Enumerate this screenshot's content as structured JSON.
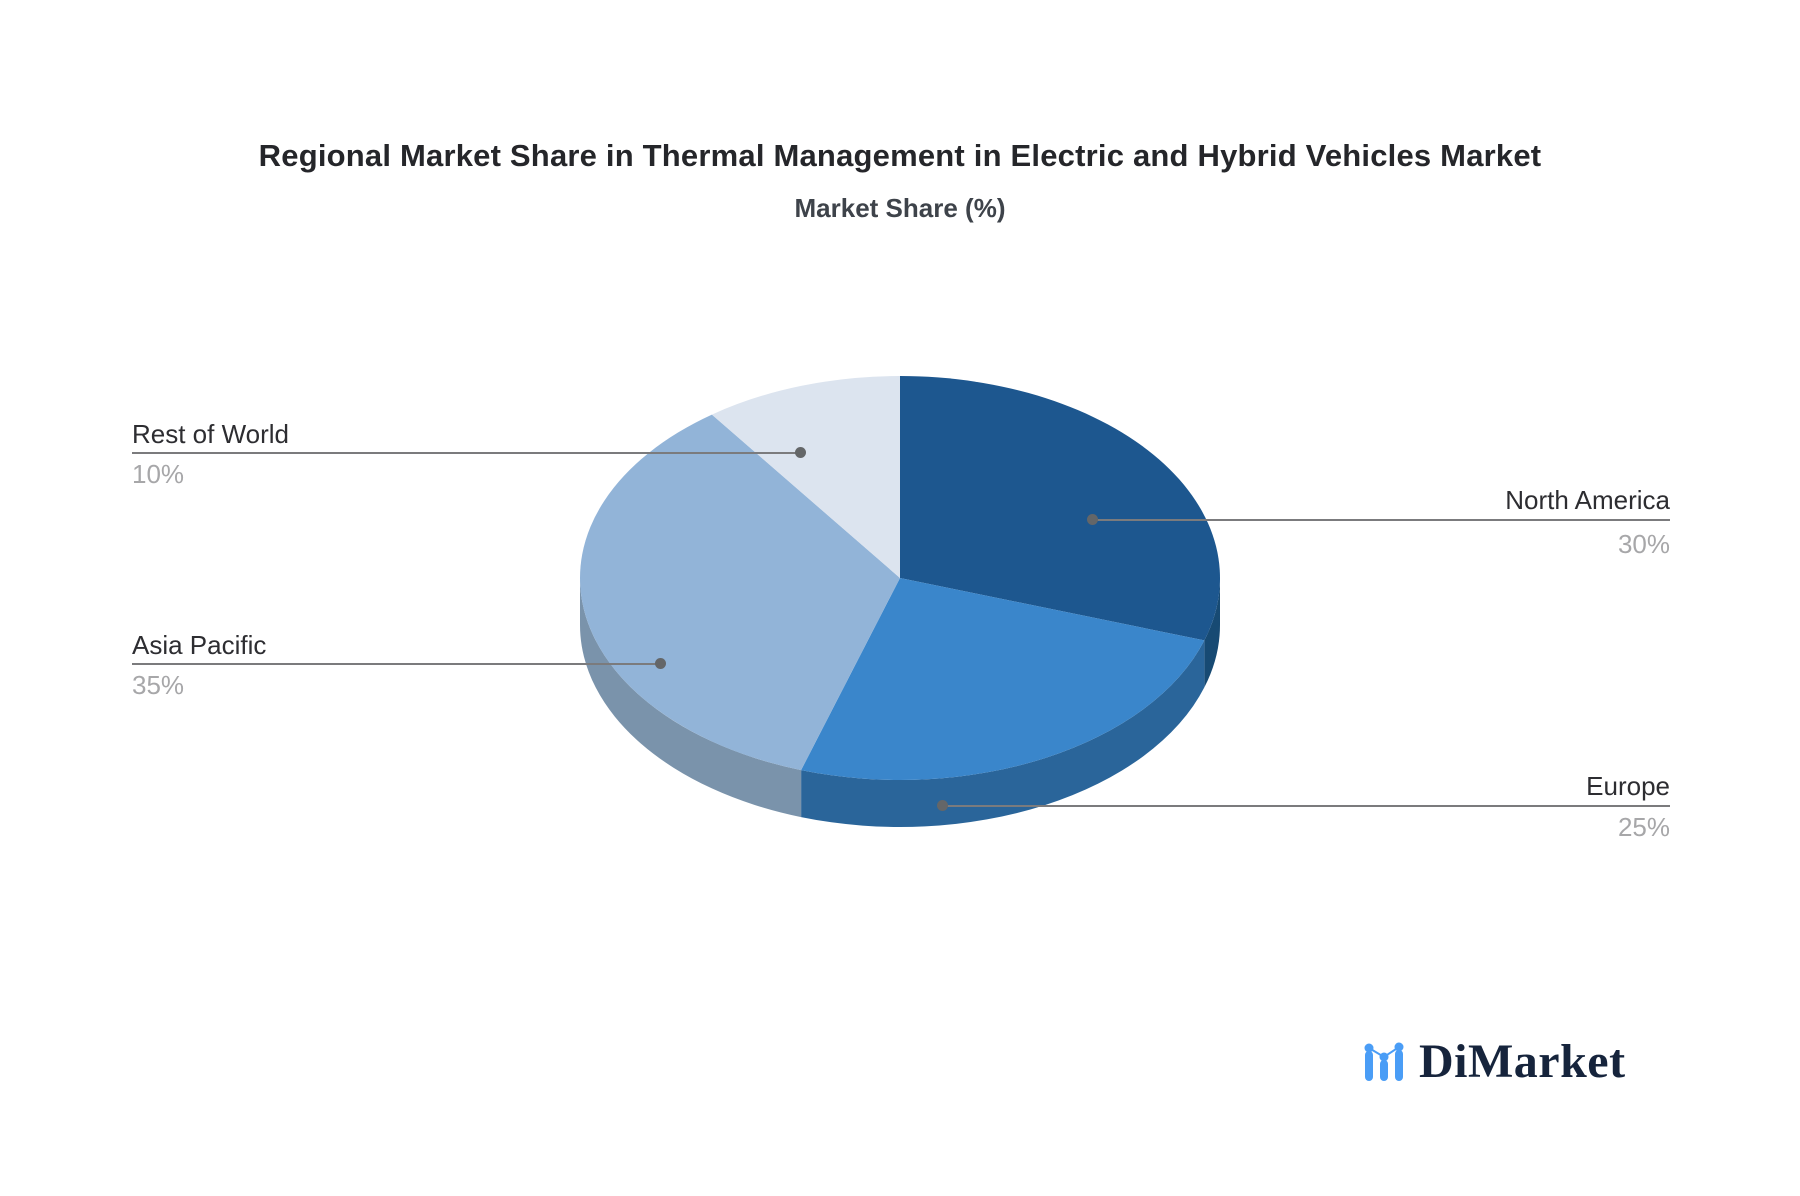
{
  "header": {
    "title": "Regional Market Share in Thermal Management in Electric and Hybrid Vehicles Market",
    "subtitle": "Market Share (%)"
  },
  "brand": {
    "name": "DiMarket",
    "icon": "bar-line-chart-icon",
    "icon_color": "#4a9df6",
    "text_color": "#16243c"
  },
  "chart_data": {
    "type": "pie",
    "style": "3d-pie",
    "title": "Regional Market Share in Thermal Management in Electric and Hybrid Vehicles Market",
    "subtitle": "Market Share (%)",
    "unit": "%",
    "start_angle_deg": 90,
    "direction": "clockwise",
    "legend_position": "none",
    "slices": [
      {
        "label": "North America",
        "value": 30,
        "pct_label": "30%",
        "color": "#1d578f",
        "side_color": "#174a73",
        "label_side": "right"
      },
      {
        "label": "Europe",
        "value": 25,
        "pct_label": "25%",
        "color": "#3a86cb",
        "side_color": "#2a659a",
        "label_side": "right"
      },
      {
        "label": "Asia Pacific",
        "value": 35,
        "pct_label": "35%",
        "color": "#92b4d8",
        "side_color": "#7a93ab",
        "label_side": "left"
      },
      {
        "label": "Rest of World",
        "value": 10,
        "pct_label": "10%",
        "color": "#dce4ef",
        "side_color": "#c9d2e0",
        "label_side": "left"
      }
    ],
    "annotation_line_color": "#7b7b7d",
    "annotation_dot_color": "#646668"
  }
}
